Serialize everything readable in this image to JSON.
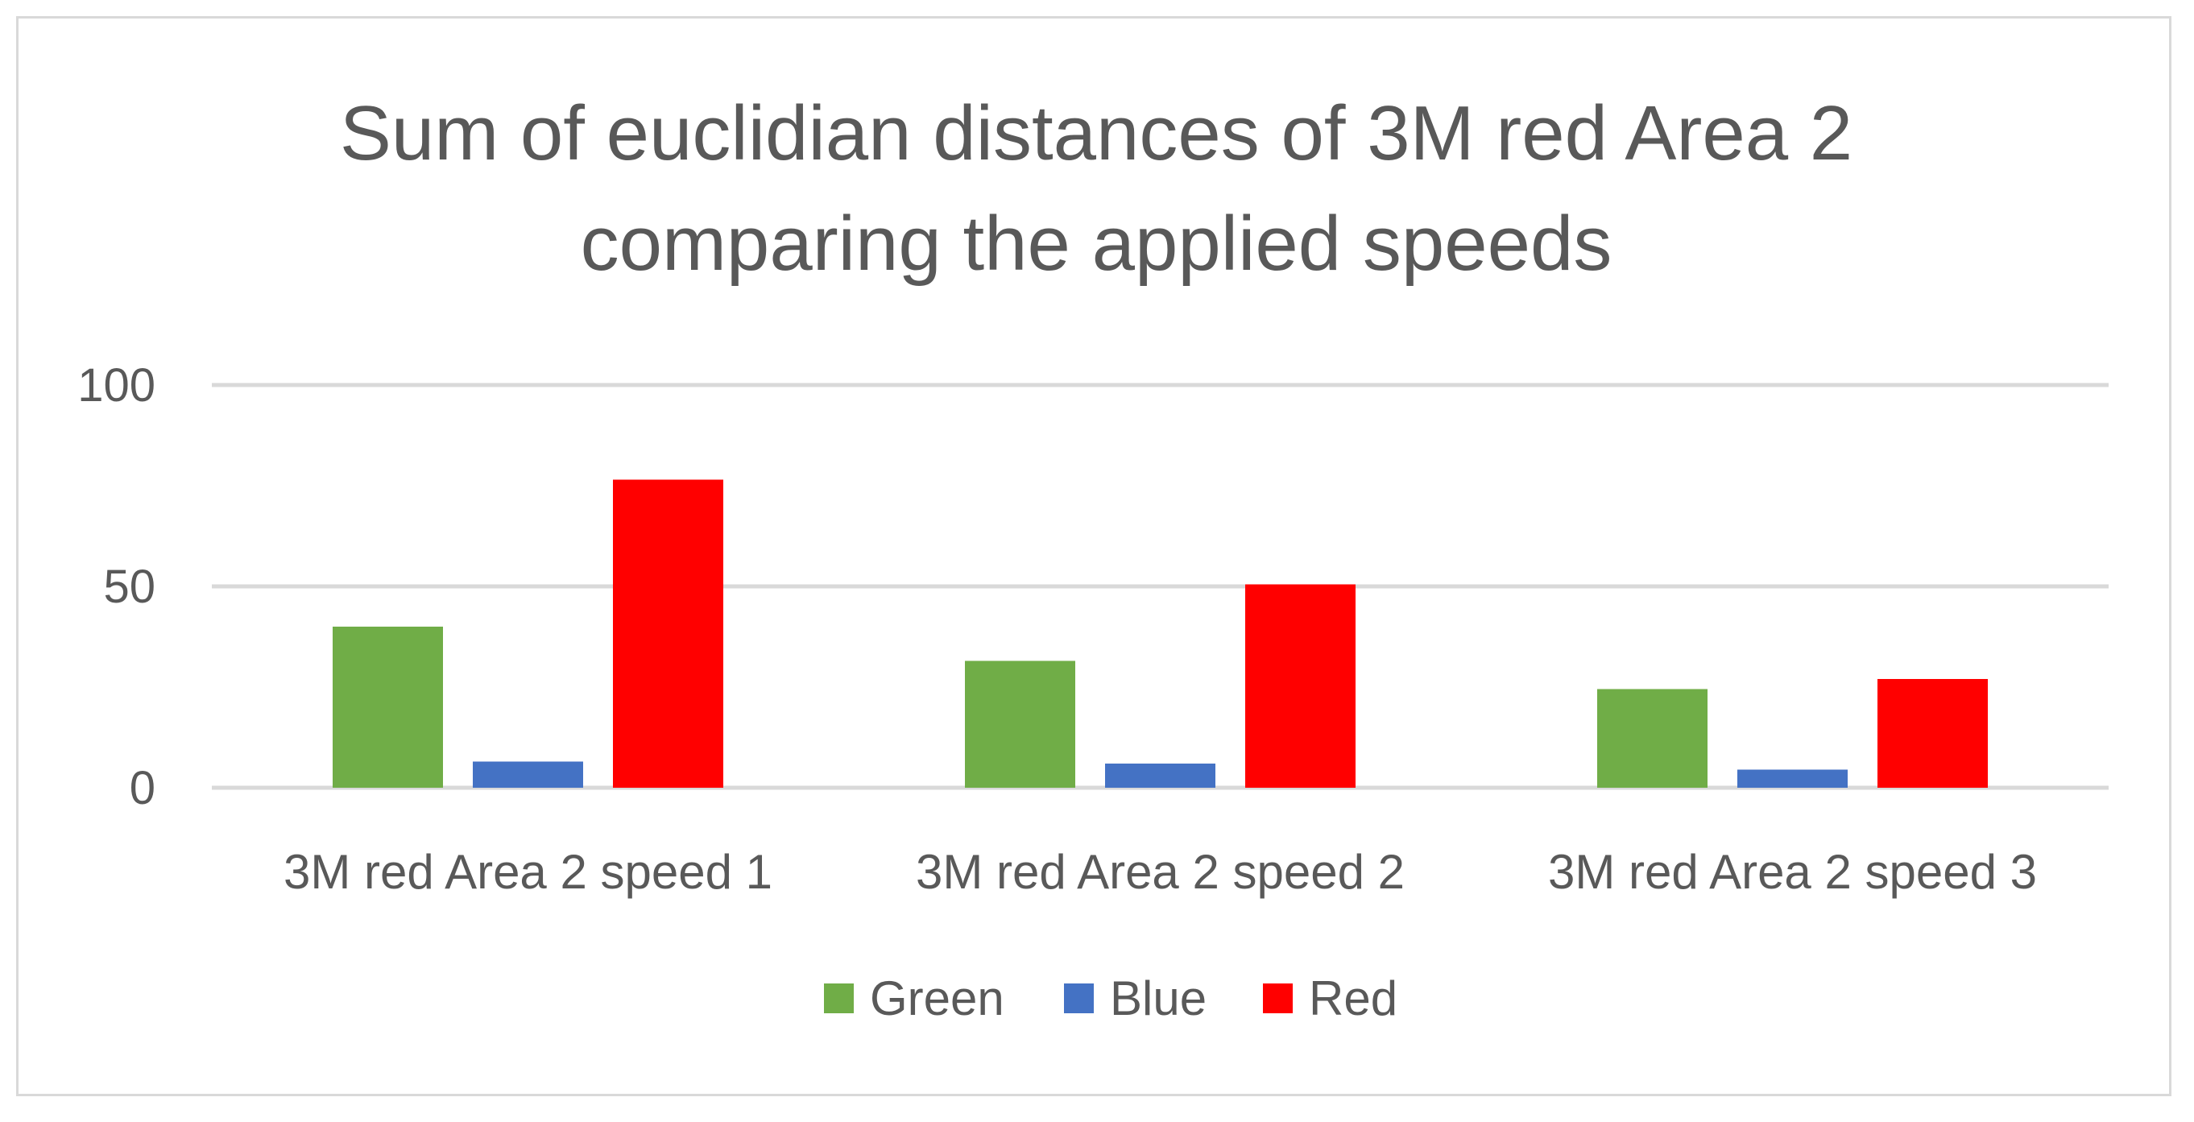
{
  "chart_data": {
    "type": "bar",
    "title_lines": [
      "Sum of euclidian distances of 3M red Area 2",
      "comparing the applied speeds"
    ],
    "categories": [
      "3M red Area 2 speed 1",
      "3M red Area 2 speed 2",
      "3M red Area 2 speed 3"
    ],
    "series": [
      {
        "name": "Green",
        "color": "#70ad47",
        "values": [
          40,
          31.5,
          24.5
        ]
      },
      {
        "name": "Blue",
        "color": "#4472c4",
        "values": [
          6.5,
          6,
          4.5
        ]
      },
      {
        "name": "Red",
        "color": "#ff0000",
        "values": [
          76.5,
          50.5,
          27
        ]
      }
    ],
    "ylim": [
      0,
      100
    ],
    "yticks": [
      0,
      50,
      100
    ],
    "grid": true,
    "legend_position": "bottom"
  }
}
